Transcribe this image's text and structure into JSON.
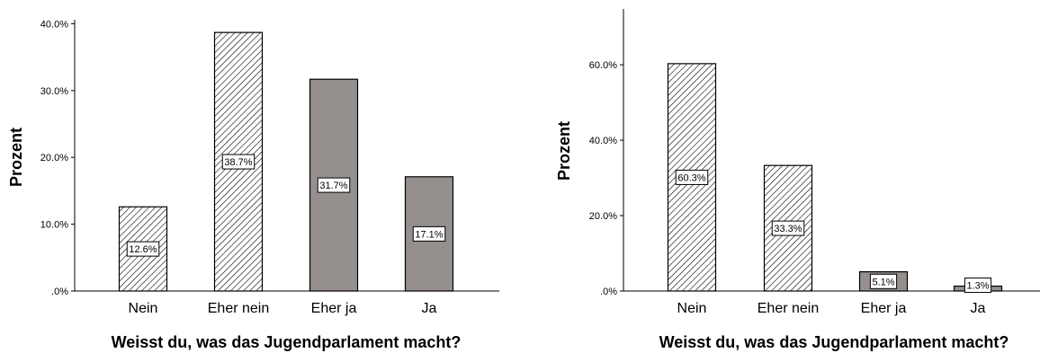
{
  "colors": {
    "axis": "#000000",
    "bar_stroke": "#000000",
    "solid_fill": "#958f8d",
    "hatch": "#000000",
    "label_bg": "#ffffff"
  },
  "chart_data": [
    {
      "type": "bar",
      "categories": [
        "Nein",
        "Eher nein",
        "Eher ja",
        "Ja"
      ],
      "values": [
        12.6,
        38.7,
        31.7,
        17.1
      ],
      "data_labels": [
        "12.6%",
        "38.7%",
        "31.7%",
        "17.1%"
      ],
      "fill_patterns": [
        "hatch",
        "hatch",
        "solid",
        "solid"
      ],
      "yticks": [
        0,
        10,
        20,
        30,
        40
      ],
      "ytick_labels": [
        ".0%",
        "10.0%",
        "20.0%",
        "30.0%",
        "40.0%"
      ],
      "ylim": [
        0,
        40.6
      ],
      "xlabel": "Weisst du, was das Jugendparlament macht?",
      "ylabel": "Prozent",
      "grid": false
    },
    {
      "type": "bar",
      "categories": [
        "Nein",
        "Eher nein",
        "Eher ja",
        "Ja"
      ],
      "values": [
        60.3,
        33.3,
        5.1,
        1.3
      ],
      "data_labels": [
        "60.3%",
        "33.3%",
        "5.1%",
        "1.3%"
      ],
      "fill_patterns": [
        "hatch",
        "hatch",
        "solid",
        "solid"
      ],
      "yticks": [
        0,
        20,
        40,
        60
      ],
      "ytick_labels": [
        ".0%",
        "20.0%",
        "40.0%",
        "60.0%"
      ],
      "ylim": [
        0,
        74.8
      ],
      "xlabel": "Weisst du, was das Jugendparlament macht?",
      "ylabel": "Prozent",
      "grid": false
    }
  ]
}
